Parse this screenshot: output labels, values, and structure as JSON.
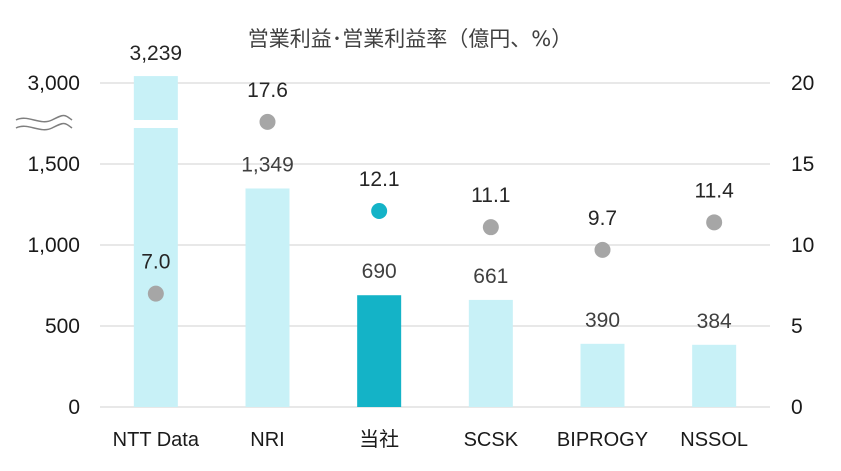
{
  "chart_data": {
    "type": "bar",
    "title": "営業利益･営業利益率（億円、%）",
    "categories": [
      "NTT Data",
      "NRI",
      "当社",
      "SCSK",
      "BIPROGY",
      "NSSOL"
    ],
    "bar_series": {
      "values": [
        3239,
        1349,
        690,
        661,
        390,
        384
      ],
      "labels": [
        "3,239",
        "1,349",
        "690",
        "661",
        "390",
        "384"
      ]
    },
    "line_series": {
      "values": [
        7.0,
        17.6,
        12.1,
        11.1,
        9.7,
        11.4
      ],
      "labels": [
        "7.0",
        "17.6",
        "12.1",
        "11.1",
        "9.7",
        "11.4"
      ]
    },
    "highlight_index": 2,
    "y_left": {
      "ticks": [
        0,
        500,
        1000,
        1500,
        3000
      ],
      "tick_labels": [
        "0",
        "500",
        "1,000",
        "1,500",
        "3,000"
      ],
      "axis_break": true
    },
    "y_right": {
      "ticks": [
        0,
        5,
        10,
        15,
        20
      ],
      "tick_labels": [
        "0",
        "5",
        "10",
        "15",
        "20"
      ],
      "range": [
        0,
        20
      ]
    },
    "grid": true,
    "colors": {
      "bar": "#c8f1f7",
      "bar_highlight": "#14b3c7",
      "dot": "#a6a6a6",
      "dot_highlight": "#14b3c7",
      "grid": "#d9d9d9"
    }
  }
}
